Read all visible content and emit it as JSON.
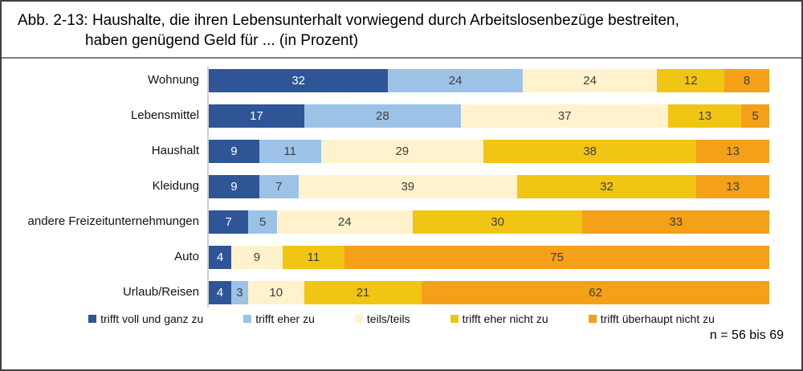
{
  "title": {
    "line1": "Abb. 2-13: Haushalte, die ihren Lebensunterhalt vorwiegend durch Arbeitslosenbezüge bestreiten,",
    "line2": "haben genügend Geld für ... (in Prozent)"
  },
  "footer": {
    "sample_note": "n = 56 bis 69"
  },
  "colors": {
    "trifft_voll_und_ganz_zu": "#2F5597",
    "trifft_eher_zu": "#9CC3E5",
    "teils_teils": "#FFF2CC",
    "trifft_eher_nicht_zu": "#F0C514",
    "trifft_ueberhaupt_nicht_zu": "#F4A019",
    "value_label_dark": "#3f3f3f",
    "value_label_light": "#ffffff"
  },
  "chart_data": {
    "type": "bar",
    "stacked": true,
    "orientation": "horizontal",
    "unit": "percent",
    "title": "Haushalte, die ihren Lebensunterhalt vorwiegend durch Arbeitslosenbezüge bestreiten, haben genügend Geld für ... (in Prozent)",
    "categories": [
      "Wohnung",
      "Lebensmittel",
      "Haushalt",
      "Kleidung",
      "andere Freizeitunternehmungen",
      "Auto",
      "Urlaub/Reisen"
    ],
    "series": [
      {
        "name": "trifft voll und ganz zu",
        "color": "#2F5597",
        "values": [
          32,
          17,
          9,
          9,
          7,
          4,
          4
        ]
      },
      {
        "name": "trifft eher zu",
        "color": "#9CC3E5",
        "values": [
          24,
          28,
          11,
          7,
          5,
          0,
          3
        ]
      },
      {
        "name": "teils/teils",
        "color": "#FFF2CC",
        "values": [
          24,
          37,
          29,
          39,
          24,
          9,
          10
        ]
      },
      {
        "name": "trifft eher nicht zu",
        "color": "#F0C514",
        "values": [
          12,
          13,
          38,
          32,
          30,
          11,
          21
        ]
      },
      {
        "name": "trifft überhaupt nicht zu",
        "color": "#F4A019",
        "values": [
          8,
          5,
          13,
          13,
          33,
          75,
          62
        ]
      }
    ],
    "xlim": [
      0,
      100
    ],
    "grid": false,
    "legend_position": "bottom",
    "annotation": "n = 56 bis 69"
  }
}
